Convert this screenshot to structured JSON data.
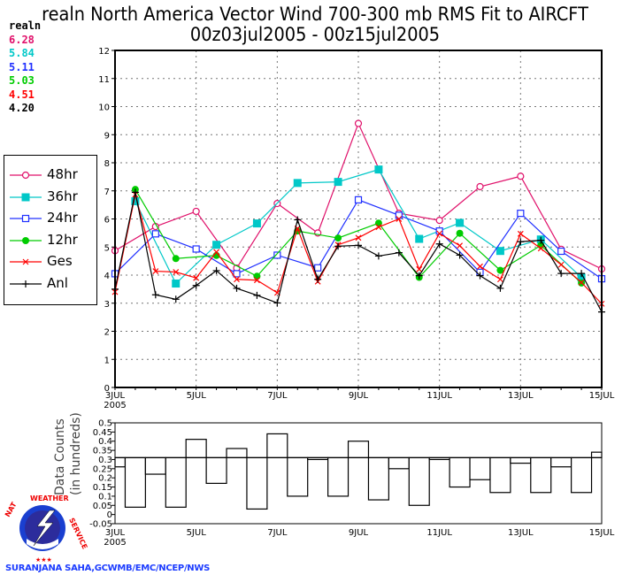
{
  "title": "realn North America Vector Wind 700-300 mb RMS Fit to AIRCFT",
  "subtitle": "00z03jul2005 - 00z15jul2005",
  "stats": {
    "header": "realn",
    "values": [
      {
        "label": "6.28",
        "color": "#e0106a"
      },
      {
        "label": "5.84",
        "color": "#00c8c8"
      },
      {
        "label": "5.11",
        "color": "#2030ff"
      },
      {
        "label": "5.03",
        "color": "#00cc00"
      },
      {
        "label": "4.51",
        "color": "#ff0000"
      },
      {
        "label": "4.20",
        "color": "#000000"
      }
    ]
  },
  "credit": "SURANJANA SAHA,GCWMB/EMC/NCEP/NWS",
  "logo_text": "NATIONAL WEATHER SERVICE",
  "chart_data": [
    {
      "type": "line",
      "ylim": [
        0,
        12
      ],
      "yticks": [
        "0",
        "1",
        "2",
        "3",
        "4",
        "5",
        "6",
        "7",
        "8",
        "9",
        "10",
        "11",
        "12"
      ],
      "xticks": [
        "3JUL",
        "5JUL",
        "7JUL",
        "9JUL",
        "11JUL",
        "13JUL",
        "15JUL"
      ],
      "xtick_sub": "2005",
      "x": [
        "00z03jul",
        "12z03jul",
        "00z04jul",
        "12z04jul",
        "00z05jul",
        "12z05jul",
        "00z06jul",
        "12z06jul",
        "00z07jul",
        "12z07jul",
        "00z08jul",
        "12z08jul",
        "00z09jul",
        "12z09jul",
        "00z10jul",
        "12z10jul",
        "00z11jul",
        "12z11jul",
        "00z12jul",
        "12z12jul",
        "00z13jul",
        "12z13jul",
        "00z14jul",
        "12z14jul",
        "00z15jul"
      ],
      "grid": true,
      "legend_position": "left",
      "series": [
        {
          "name": "48hr",
          "color": "#e0106a",
          "marker": "circle-open",
          "values": [
            4.87,
            null,
            5.73,
            null,
            6.27,
            null,
            4.25,
            null,
            6.55,
            null,
            5.5,
            null,
            9.4,
            null,
            6.2,
            null,
            5.95,
            null,
            7.15,
            null,
            7.52,
            null,
            4.92,
            null,
            4.22
          ]
        },
        {
          "name": "36hr",
          "color": "#00c8c8",
          "marker": "square-filled",
          "values": [
            null,
            6.63,
            null,
            3.7,
            null,
            5.08,
            null,
            5.84,
            null,
            7.28,
            null,
            7.32,
            null,
            7.76,
            null,
            5.29,
            null,
            5.86,
            null,
            4.86,
            null,
            5.27,
            null,
            3.92,
            null
          ]
        },
        {
          "name": "24hr",
          "color": "#2030ff",
          "marker": "square-open",
          "values": [
            4.05,
            null,
            5.47,
            null,
            4.93,
            null,
            4.05,
            null,
            4.71,
            null,
            4.26,
            null,
            6.68,
            null,
            6.13,
            null,
            5.57,
            null,
            4.1,
            null,
            6.2,
            null,
            4.85,
            null,
            3.87
          ]
        },
        {
          "name": "12hr",
          "color": "#00cc00",
          "marker": "circle-filled",
          "values": [
            null,
            7.05,
            null,
            4.59,
            null,
            4.7,
            null,
            3.96,
            null,
            5.57,
            null,
            5.32,
            null,
            5.85,
            null,
            3.92,
            null,
            5.49,
            null,
            4.17,
            null,
            5.06,
            null,
            3.72,
            null
          ]
        },
        {
          "name": "Ges",
          "color": "#ff0000",
          "marker": "x",
          "values": [
            3.4,
            6.87,
            4.14,
            4.11,
            3.9,
            4.82,
            3.85,
            3.82,
            3.37,
            5.66,
            3.77,
            5.08,
            5.33,
            5.71,
            6.0,
            4.21,
            5.48,
            5.05,
            4.31,
            3.85,
            5.47,
            4.95,
            4.37,
            3.74,
            2.98
          ]
        },
        {
          "name": "Anl",
          "color": "#000000",
          "marker": "plus",
          "values": [
            3.5,
            6.95,
            3.3,
            3.14,
            3.63,
            4.16,
            3.53,
            3.28,
            3.01,
            5.97,
            3.85,
            5.03,
            5.06,
            4.68,
            4.8,
            3.98,
            5.11,
            4.71,
            3.98,
            3.53,
            5.19,
            5.24,
            4.06,
            4.06,
            2.69
          ]
        }
      ]
    },
    {
      "type": "bar",
      "ylabel_lines": [
        "Data Counts",
        "(in hundreds)"
      ],
      "ylim": [
        -0.05,
        0.5
      ],
      "yticks": [
        "-0.05",
        "0",
        "0.05",
        "0.1",
        "0.15",
        "0.2",
        "0.25",
        "0.3",
        "0.35",
        "0.4",
        "0.45",
        "0.5"
      ],
      "xticks": [
        "3JUL",
        "5JUL",
        "7JUL",
        "9JUL",
        "11JUL",
        "13JUL",
        "15JUL"
      ],
      "xtick_sub": "2005",
      "reference_line": 0.31,
      "values": [
        0.26,
        0.04,
        0.22,
        0.04,
        0.41,
        0.17,
        0.36,
        0.03,
        0.44,
        0.1,
        0.3,
        0.1,
        0.4,
        0.08,
        0.25,
        0.05,
        0.3,
        0.15,
        0.19,
        0.12,
        0.28,
        0.12,
        0.26,
        0.12,
        0.34
      ]
    }
  ]
}
